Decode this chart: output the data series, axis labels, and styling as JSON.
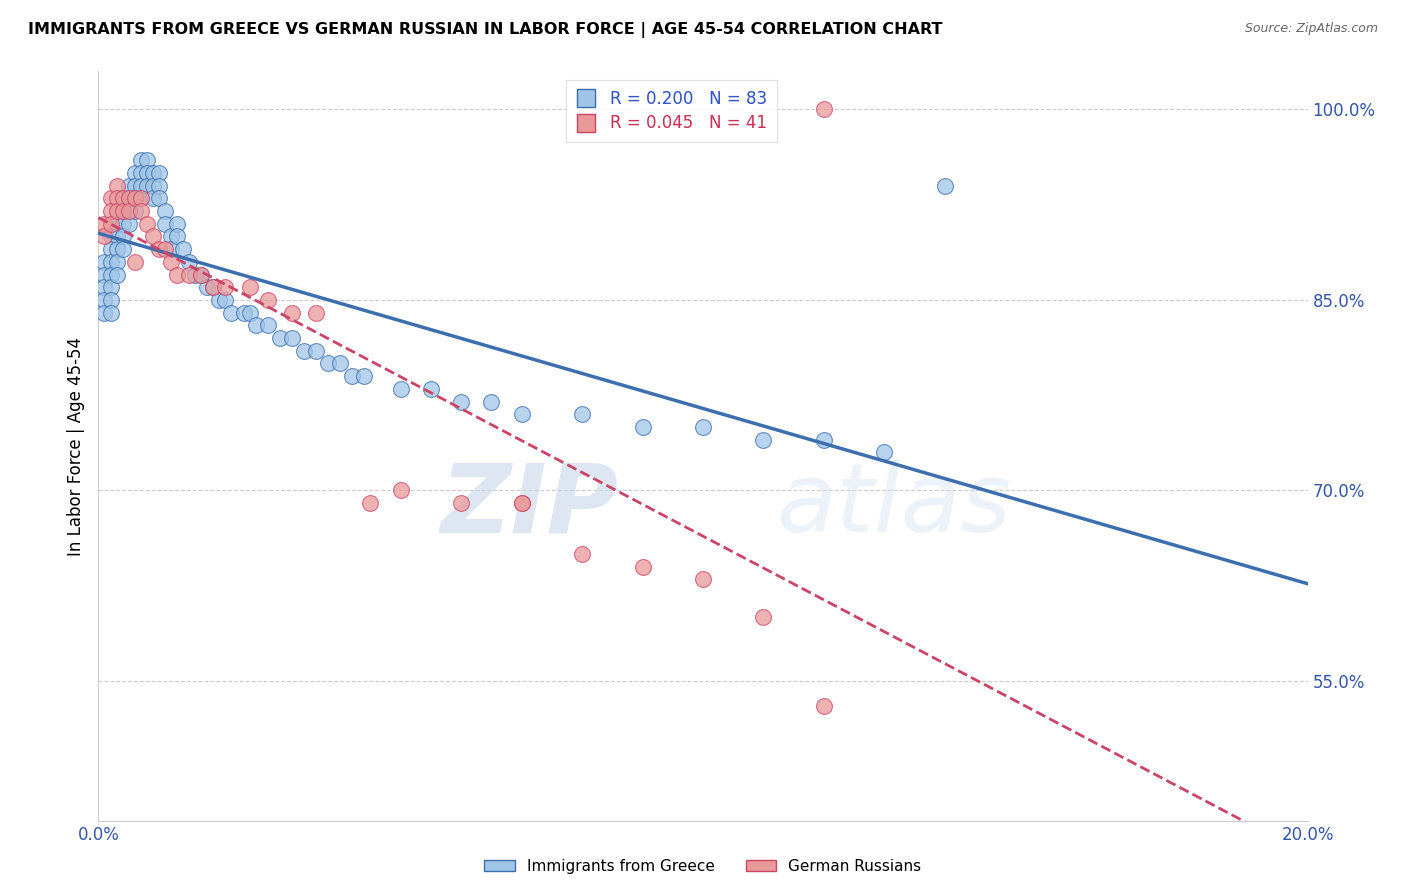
{
  "title": "IMMIGRANTS FROM GREECE VS GERMAN RUSSIAN IN LABOR FORCE | AGE 45-54 CORRELATION CHART",
  "source": "Source: ZipAtlas.com",
  "ylabel": "In Labor Force | Age 45-54",
  "xlim": [
    0.0,
    0.2
  ],
  "ylim": [
    0.44,
    1.03
  ],
  "yticks_right": [
    0.55,
    0.7,
    0.85,
    1.0
  ],
  "ytick_right_labels": [
    "55.0%",
    "70.0%",
    "85.0%",
    "100.0%"
  ],
  "legend_label_blue": "Immigrants from Greece",
  "legend_label_pink": "German Russians",
  "blue_color": "#9fc5e8",
  "pink_color": "#ea9999",
  "blue_edge_color": "#3d6faf",
  "pink_edge_color": "#cc4466",
  "blue_line_color": "#3d6faf",
  "pink_line_color": "#cc4466",
  "watermark_zip": "ZIP",
  "watermark_atlas": "atlas",
  "blue_x": [
    0.001,
    0.001,
    0.001,
    0.001,
    0.001,
    0.002,
    0.002,
    0.002,
    0.002,
    0.002,
    0.002,
    0.002,
    0.003,
    0.003,
    0.003,
    0.003,
    0.003,
    0.003,
    0.004,
    0.004,
    0.004,
    0.004,
    0.004,
    0.005,
    0.005,
    0.005,
    0.005,
    0.006,
    0.006,
    0.006,
    0.006,
    0.007,
    0.007,
    0.007,
    0.007,
    0.008,
    0.008,
    0.008,
    0.009,
    0.009,
    0.009,
    0.01,
    0.01,
    0.01,
    0.011,
    0.011,
    0.012,
    0.012,
    0.013,
    0.013,
    0.014,
    0.015,
    0.016,
    0.017,
    0.018,
    0.019,
    0.02,
    0.021,
    0.022,
    0.024,
    0.025,
    0.026,
    0.028,
    0.03,
    0.032,
    0.034,
    0.036,
    0.038,
    0.04,
    0.042,
    0.044,
    0.05,
    0.055,
    0.06,
    0.065,
    0.07,
    0.08,
    0.09,
    0.1,
    0.11,
    0.12,
    0.13,
    0.14
  ],
  "blue_y": [
    0.88,
    0.87,
    0.86,
    0.85,
    0.84,
    0.9,
    0.89,
    0.88,
    0.87,
    0.86,
    0.85,
    0.84,
    0.92,
    0.91,
    0.9,
    0.89,
    0.88,
    0.87,
    0.93,
    0.92,
    0.91,
    0.9,
    0.89,
    0.94,
    0.93,
    0.92,
    0.91,
    0.95,
    0.94,
    0.93,
    0.92,
    0.96,
    0.95,
    0.94,
    0.93,
    0.96,
    0.95,
    0.94,
    0.95,
    0.94,
    0.93,
    0.95,
    0.94,
    0.93,
    0.92,
    0.91,
    0.9,
    0.89,
    0.91,
    0.9,
    0.89,
    0.88,
    0.87,
    0.87,
    0.86,
    0.86,
    0.85,
    0.85,
    0.84,
    0.84,
    0.84,
    0.83,
    0.83,
    0.82,
    0.82,
    0.81,
    0.81,
    0.8,
    0.8,
    0.79,
    0.79,
    0.78,
    0.78,
    0.77,
    0.77,
    0.76,
    0.76,
    0.75,
    0.75,
    0.74,
    0.74,
    0.73,
    0.94
  ],
  "pink_x": [
    0.001,
    0.001,
    0.002,
    0.002,
    0.002,
    0.003,
    0.003,
    0.003,
    0.004,
    0.004,
    0.005,
    0.005,
    0.006,
    0.006,
    0.007,
    0.007,
    0.008,
    0.009,
    0.01,
    0.011,
    0.012,
    0.013,
    0.015,
    0.017,
    0.019,
    0.021,
    0.025,
    0.028,
    0.032,
    0.036,
    0.045,
    0.05,
    0.06,
    0.07,
    0.08,
    0.09,
    0.1,
    0.11,
    0.12,
    0.07,
    0.12
  ],
  "pink_y": [
    0.91,
    0.9,
    0.93,
    0.92,
    0.91,
    0.94,
    0.93,
    0.92,
    0.93,
    0.92,
    0.93,
    0.92,
    0.93,
    0.88,
    0.93,
    0.92,
    0.91,
    0.9,
    0.89,
    0.89,
    0.88,
    0.87,
    0.87,
    0.87,
    0.86,
    0.86,
    0.86,
    0.85,
    0.84,
    0.84,
    0.69,
    0.7,
    0.69,
    0.69,
    0.65,
    0.64,
    0.63,
    0.6,
    0.53,
    0.69,
    1.0
  ]
}
